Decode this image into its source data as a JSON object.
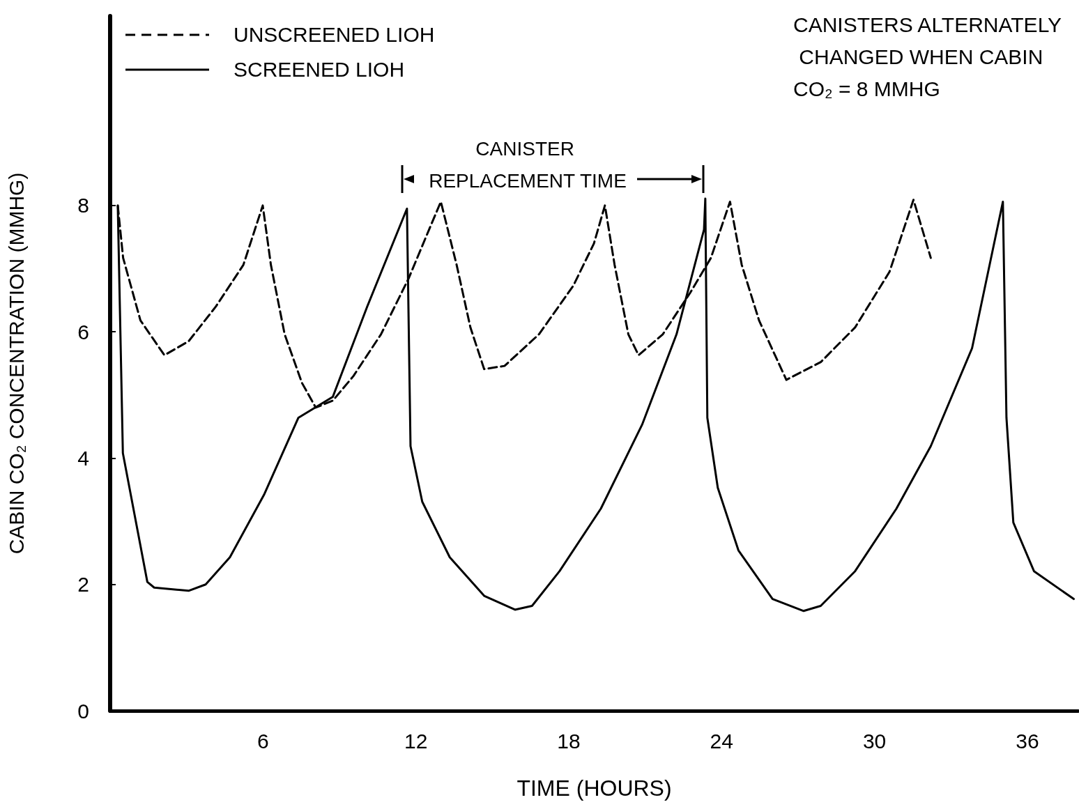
{
  "chart_data": {
    "type": "line",
    "xlabel": "TIME (HOURS)",
    "ylabel": "CABIN CO₂ CONCENTRATION (MMHG)",
    "annotations": [
      "CANISTERS ALTERNATELY CHANGED WHEN CABIN CO₂ = 8 MMHG",
      "CANISTER REPLACEMENT TIME"
    ],
    "xlim": [
      0,
      38
    ],
    "xticks": [
      6,
      12,
      18,
      24,
      30,
      36
    ],
    "ylim": [
      0,
      11
    ],
    "yticks": [
      0,
      2,
      4,
      6,
      8
    ],
    "grid": false,
    "legend": "top left",
    "marker": "none",
    "series": [
      {
        "name": "UNSCREENED LIOH",
        "color": "#000000",
        "line_style": "dashed",
        "x": [
          0.3,
          0.51,
          1.19,
          2.13,
          3.08,
          4.15,
          5.23,
          5.99,
          6.31,
          6.85,
          7.53,
          8.07,
          8.74,
          9.55,
          10.63,
          11.71,
          12.52,
          12.98,
          13.6,
          14.14,
          14.68,
          15.48,
          16.83,
          18.18,
          18.99,
          19.42,
          19.8,
          20.34,
          20.74,
          21.69,
          22.77,
          23.58,
          24.33,
          24.79,
          25.47,
          26.54,
          27.89,
          29.24,
          30.59,
          31.53,
          32.21
        ],
        "values": [
          8.0,
          7.17,
          6.18,
          5.63,
          5.85,
          6.4,
          7.06,
          8.0,
          7.06,
          5.96,
          5.19,
          4.8,
          4.91,
          5.3,
          5.96,
          6.84,
          7.62,
          8.06,
          7.06,
          6.07,
          5.41,
          5.46,
          5.96,
          6.73,
          7.4,
          8.0,
          7.06,
          5.96,
          5.63,
          5.96,
          6.62,
          7.17,
          8.06,
          7.06,
          6.18,
          5.24,
          5.52,
          6.07,
          6.95,
          8.09,
          7.17
        ]
      },
      {
        "name": "SCREENED LIOH",
        "color": "#000000",
        "line_style": "solid",
        "x": [
          0.3,
          0.5,
          1.46,
          1.73,
          3.08,
          3.75,
          4.7,
          6.04,
          7.39,
          8.74,
          10.09,
          11.65,
          11.79,
          12.25,
          13.33,
          14.68,
          15.89,
          16.56,
          17.64,
          19.26,
          20.88,
          22.23,
          23.31,
          23.36,
          23.44,
          23.85,
          24.66,
          26.0,
          27.22,
          27.89,
          29.24,
          30.86,
          32.21,
          33.83,
          35.04,
          35.18,
          35.45,
          36.26,
          37.82
        ],
        "values": [
          8.0,
          4.08,
          2.04,
          1.95,
          1.9,
          2.0,
          2.43,
          3.42,
          4.64,
          4.97,
          6.4,
          7.95,
          4.19,
          3.31,
          2.43,
          1.82,
          1.6,
          1.66,
          2.21,
          3.2,
          4.53,
          5.96,
          7.62,
          8.11,
          4.64,
          3.53,
          2.54,
          1.77,
          1.58,
          1.66,
          2.21,
          3.2,
          4.19,
          5.74,
          8.06,
          4.64,
          2.98,
          2.21,
          1.77
        ]
      }
    ]
  }
}
